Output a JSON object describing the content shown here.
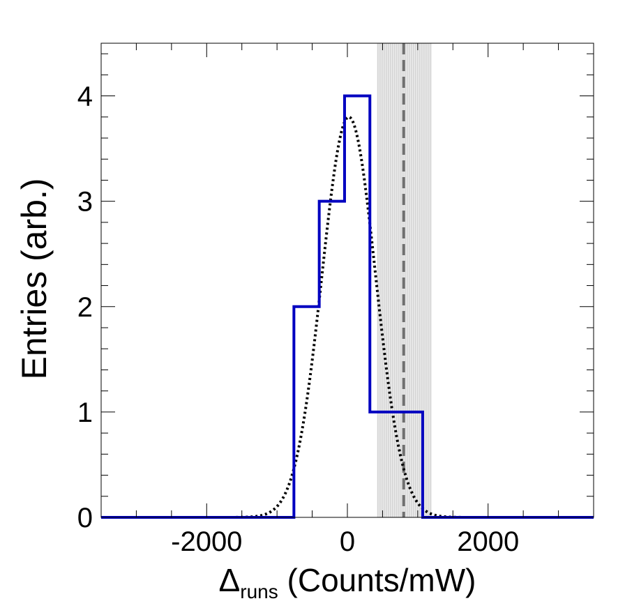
{
  "chart_data": {
    "type": "histogram",
    "title": "",
    "xlabel": {
      "symbol": "Δ",
      "subscript": "runs",
      "rest": " (Counts/mW)"
    },
    "ylabel": "Entries (arb.)",
    "xlim": [
      -3500,
      3500
    ],
    "ylim": [
      0,
      4.5
    ],
    "x_ticks": [
      -2000,
      0,
      2000
    ],
    "x_tick_labels": [
      "-2000",
      "0",
      "2000"
    ],
    "y_ticks": [
      0,
      1,
      2,
      3,
      4
    ],
    "y_tick_labels": [
      "0",
      "1",
      "2",
      "3",
      "4"
    ],
    "histogram": {
      "color": "#0000c0",
      "bins": [
        {
          "low": -3500,
          "high": -760,
          "count": 0
        },
        {
          "low": -760,
          "high": -400,
          "count": 2
        },
        {
          "low": -400,
          "high": -40,
          "count": 3
        },
        {
          "low": -40,
          "high": 320,
          "count": 4
        },
        {
          "low": 320,
          "high": 1070,
          "count": 1
        },
        {
          "low": 1070,
          "high": 3500,
          "count": 0
        }
      ]
    },
    "gaussian_fit": {
      "amplitude": 3.8,
      "mean": 20,
      "sigma": 380,
      "style": "dotted",
      "color": "#000000"
    },
    "reference_line": {
      "x": 800,
      "band_low": 420,
      "band_high": 1200,
      "style": "dashed",
      "color": "#707070",
      "band_color": "#c8c8c8"
    },
    "grid": false,
    "legend": "none"
  }
}
